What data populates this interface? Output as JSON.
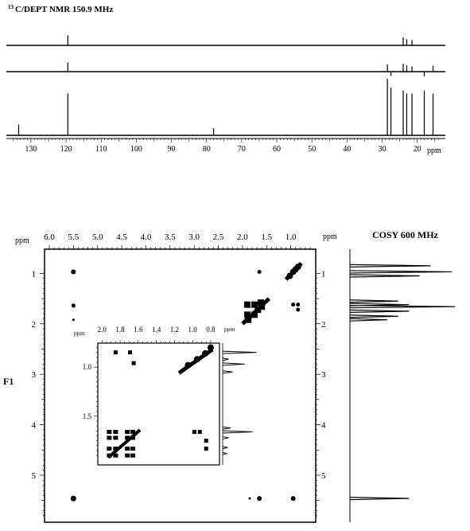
{
  "dept": {
    "title_sup": "13",
    "title": "C/DEPT NMR 150.9 MHz",
    "axis_unit": "ppm",
    "ticks": [
      "130",
      "120",
      "110",
      "100",
      "90",
      "80",
      "70",
      "60",
      "50",
      "40",
      "30",
      "20"
    ],
    "tick_values": [
      130,
      120,
      110,
      100,
      90,
      80,
      70,
      60,
      50,
      40,
      30,
      20
    ],
    "xlim": [
      137,
      12
    ],
    "traces": [
      {
        "peaks": [
          {
            "x": 119.5,
            "h": 0.42
          },
          {
            "x": 24,
            "h": 0.33
          },
          {
            "x": 23,
            "h": 0.26
          },
          {
            "x": 21.5,
            "h": 0.22
          }
        ]
      },
      {
        "peaks": [
          {
            "x": 119.5,
            "h": 0.38
          },
          {
            "x": 28.5,
            "h": 0.3
          },
          {
            "x": 24,
            "h": 0.33
          },
          {
            "x": 23,
            "h": 0.26
          },
          {
            "x": 21.5,
            "h": 0.22
          },
          {
            "x": 15.5,
            "h": 0.25
          }
        ],
        "neg": [
          {
            "x": 27.5,
            "h": 0.18
          },
          {
            "x": 18,
            "h": 0.2
          }
        ]
      },
      {
        "peaks": [
          {
            "x": 133.5,
            "h": 0.18
          },
          {
            "x": 119.5,
            "h": 0.7
          },
          {
            "x": 78,
            "h": 0.12
          },
          {
            "x": 28.5,
            "h": 0.95
          },
          {
            "x": 27.5,
            "h": 0.8
          },
          {
            "x": 24,
            "h": 0.75
          },
          {
            "x": 23,
            "h": 0.7
          },
          {
            "x": 21.5,
            "h": 0.7
          },
          {
            "x": 18,
            "h": 0.75
          },
          {
            "x": 15.5,
            "h": 0.7
          }
        ]
      }
    ]
  },
  "cosy": {
    "title": "COSY 600 MHz",
    "axis_unit": "ppm",
    "f1_label": "F1",
    "x_ticks": [
      "6.0",
      "5.5",
      "5.0",
      "4.5",
      "4.0",
      "3.5",
      "3.0",
      "2.5",
      "2.0",
      "1.5",
      "1.0"
    ],
    "x_tick_values": [
      6.0,
      5.5,
      5.0,
      4.5,
      4.0,
      3.5,
      3.0,
      2.5,
      2.0,
      1.5,
      1.0
    ],
    "y_ticks": [
      "1",
      "2",
      "3",
      "4",
      "5"
    ],
    "y_tick_values": [
      1,
      2,
      3,
      4,
      5
    ],
    "xlim": [
      6.0,
      0.5
    ],
    "ylim": [
      0.6,
      5.9
    ],
    "cross_peaks": [
      {
        "x": 5.5,
        "y": 0.97,
        "s": 3
      },
      {
        "x": 5.5,
        "y": 1.64,
        "s": 2.5
      },
      {
        "x": 5.5,
        "y": 1.92,
        "s": 1.5
      },
      {
        "x": 5.5,
        "y": 5.46,
        "s": 3.5
      },
      {
        "x": 1.65,
        "y": 0.97,
        "s": 2.5
      },
      {
        "x": 1.65,
        "y": 5.46,
        "s": 3
      },
      {
        "x": 1.85,
        "y": 5.46,
        "s": 1.5
      },
      {
        "x": 0.95,
        "y": 5.46,
        "s": 3
      },
      {
        "x": 0.95,
        "y": 1.62,
        "s": 2.5
      },
      {
        "x": 0.85,
        "y": 1.72,
        "s": 2.5
      },
      {
        "x": 0.85,
        "y": 1.62,
        "s": 2.5
      }
    ],
    "projection_peaks": [
      {
        "y": 0.85,
        "h": 0.75
      },
      {
        "y": 0.97,
        "h": 0.95
      },
      {
        "y": 1.05,
        "h": 0.65
      },
      {
        "y": 1.55,
        "h": 0.45
      },
      {
        "y": 1.62,
        "h": 0.55
      },
      {
        "y": 1.66,
        "h": 0.98
      },
      {
        "y": 1.75,
        "h": 0.55
      },
      {
        "y": 1.85,
        "h": 0.45
      },
      {
        "y": 1.92,
        "h": 0.35
      },
      {
        "y": 5.46,
        "h": 0.55
      }
    ],
    "inset": {
      "axis_unit": "ppm",
      "x_ticks": [
        "2.0",
        "1.8",
        "1.6",
        "1.4",
        "1.2",
        "1.0",
        "0.8"
      ],
      "x_tick_values": [
        2.0,
        1.8,
        1.6,
        1.4,
        1.2,
        1.0,
        0.8
      ],
      "y_ticks": [
        "1.0",
        "1.5"
      ],
      "y_tick_values": [
        1.0,
        1.5
      ],
      "xlim": [
        2.02,
        0.72
      ],
      "ylim": [
        0.78,
        1.98
      ],
      "projection_peaks": [
        {
          "y": 0.85,
          "h": 0.85
        },
        {
          "y": 0.92,
          "h": 0.15
        },
        {
          "y": 0.97,
          "h": 0.55
        },
        {
          "y": 1.05,
          "h": 0.25
        },
        {
          "y": 1.62,
          "h": 0.2
        },
        {
          "y": 1.66,
          "h": 0.75
        },
        {
          "y": 1.72,
          "h": 0.15
        },
        {
          "y": 1.82,
          "h": 0.12
        },
        {
          "y": 1.88,
          "h": 0.1
        }
      ]
    }
  }
}
